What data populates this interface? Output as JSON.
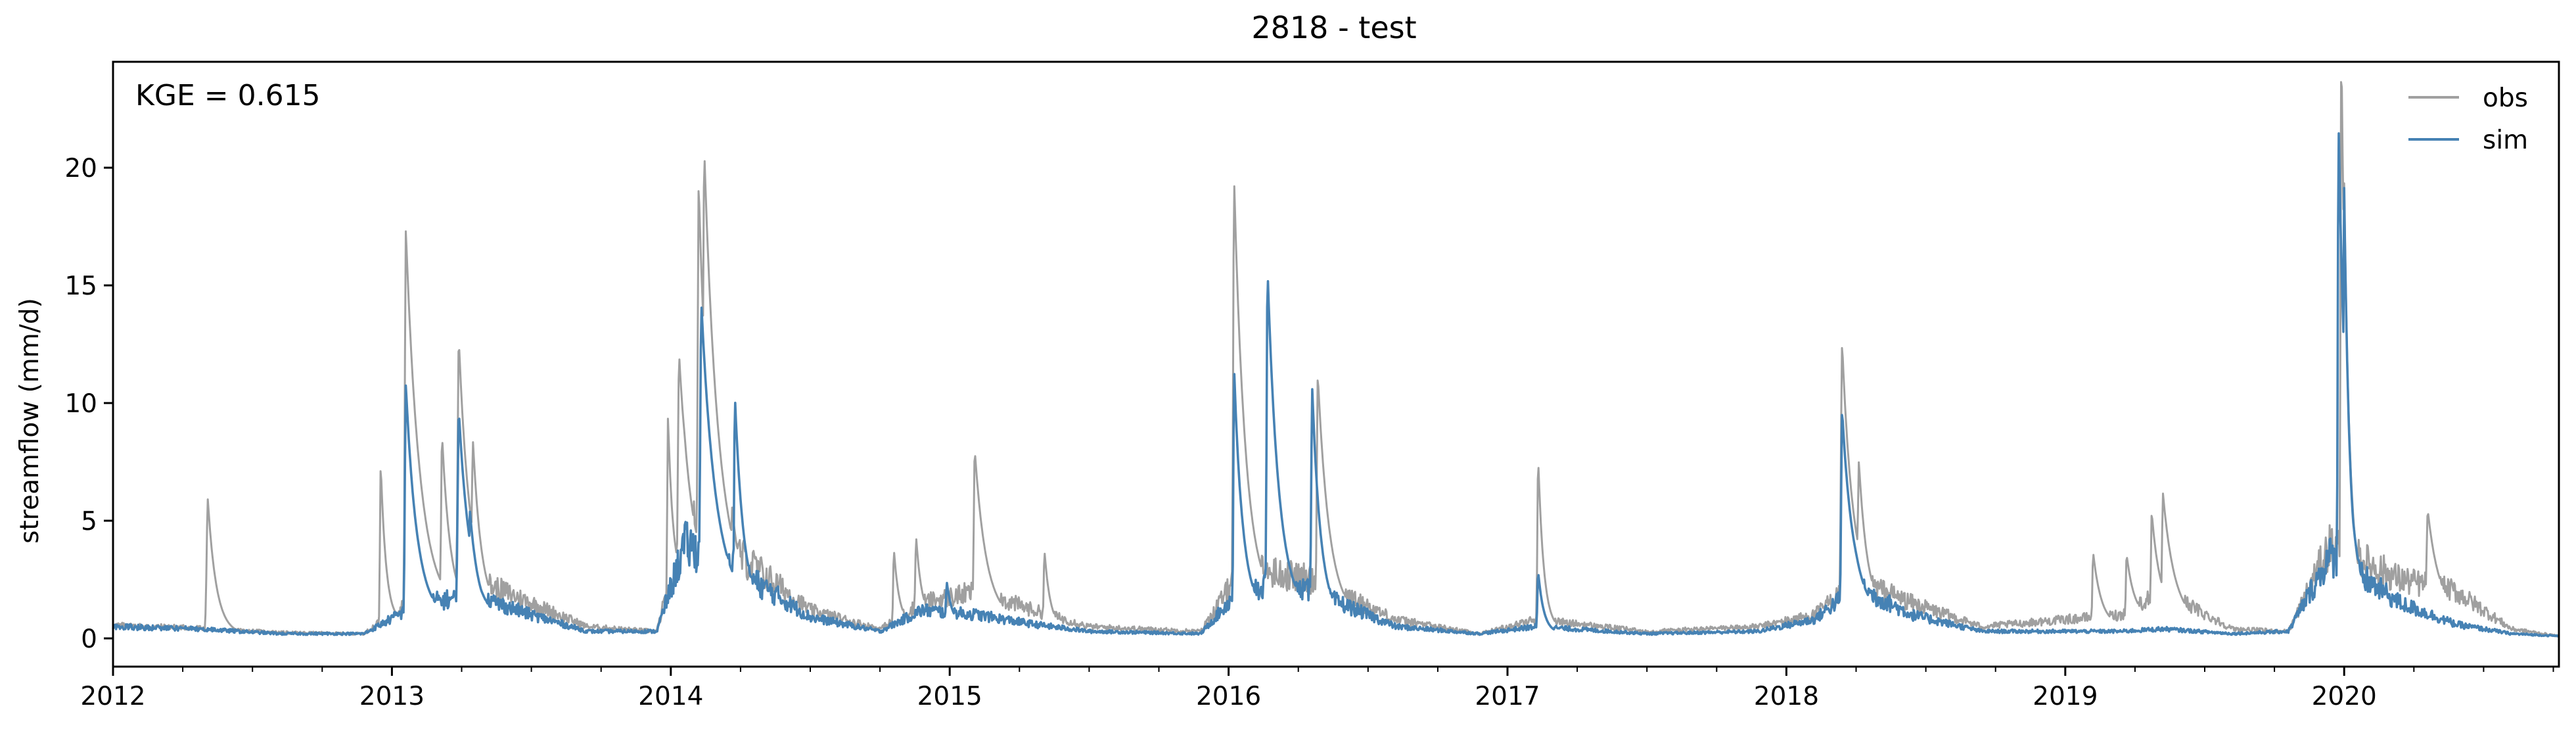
{
  "chart_data": {
    "type": "line",
    "title": "2818 - test",
    "xlabel": "",
    "ylabel": "streamflow (mm/d)",
    "annotation": "KGE = 0.615",
    "xlim": [
      2012.0,
      2020.77
    ],
    "ylim": [
      -1.2,
      24.5
    ],
    "x_ticks": [
      "2012",
      "2013",
      "2014",
      "2015",
      "2016",
      "2017",
      "2018",
      "2019",
      "2020"
    ],
    "y_ticks": [
      "0",
      "5",
      "10",
      "15",
      "20"
    ],
    "legend_position": "top-right",
    "grid": false,
    "series": [
      {
        "name": "obs",
        "color": "#a0a0a0",
        "baseline": [
          [
            2012.0,
            0.55
          ],
          [
            2012.3,
            0.45
          ],
          [
            2012.6,
            0.25
          ],
          [
            2012.9,
            0.2
          ],
          [
            2013.1,
            2.0
          ],
          [
            2013.3,
            2.5
          ],
          [
            2013.5,
            1.5
          ],
          [
            2013.7,
            0.5
          ],
          [
            2013.95,
            0.3
          ],
          [
            2014.05,
            5.0
          ],
          [
            2014.25,
            3.5
          ],
          [
            2014.5,
            1.2
          ],
          [
            2014.75,
            0.4
          ],
          [
            2014.9,
            1.5
          ],
          [
            2015.1,
            2.0
          ],
          [
            2015.3,
            1.2
          ],
          [
            2015.5,
            0.5
          ],
          [
            2015.9,
            0.3
          ],
          [
            2016.05,
            3.0
          ],
          [
            2016.3,
            2.5
          ],
          [
            2016.6,
            0.8
          ],
          [
            2016.9,
            0.2
          ],
          [
            2017.1,
            0.8
          ],
          [
            2017.5,
            0.3
          ],
          [
            2017.9,
            0.5
          ],
          [
            2018.1,
            1.0
          ],
          [
            2018.25,
            2.5
          ],
          [
            2018.45,
            1.5
          ],
          [
            2018.7,
            0.5
          ],
          [
            2019.0,
            0.8
          ],
          [
            2019.2,
            1.0
          ],
          [
            2019.35,
            2.0
          ],
          [
            2019.6,
            0.4
          ],
          [
            2019.8,
            0.3
          ],
          [
            2019.95,
            4.0
          ],
          [
            2020.2,
            2.5
          ],
          [
            2020.4,
            2.0
          ],
          [
            2020.6,
            0.4
          ],
          [
            2020.77,
            0.1
          ]
        ],
        "peaks": [
          [
            2012.34,
            5.7,
            0.006,
            0.03
          ],
          [
            2012.96,
            7.0,
            0.004,
            0.02
          ],
          [
            2013.05,
            16.6,
            0.005,
            0.05
          ],
          [
            2013.18,
            7.5,
            0.005,
            0.03
          ],
          [
            2013.24,
            11.5,
            0.006,
            0.04
          ],
          [
            2013.29,
            7.3,
            0.004,
            0.03
          ],
          [
            2013.99,
            8.3,
            0.004,
            0.02
          ],
          [
            2014.03,
            10.0,
            0.006,
            0.04
          ],
          [
            2014.1,
            17.0,
            0.005,
            0.04
          ],
          [
            2014.12,
            18.5,
            0.005,
            0.05
          ],
          [
            2014.22,
            3.7,
            0.005,
            0.03
          ],
          [
            2014.8,
            3.4,
            0.004,
            0.02
          ],
          [
            2014.88,
            3.6,
            0.005,
            0.02
          ],
          [
            2015.09,
            7.0,
            0.005,
            0.04
          ],
          [
            2015.34,
            3.2,
            0.004,
            0.02
          ],
          [
            2016.02,
            18.2,
            0.005,
            0.04
          ],
          [
            2016.32,
            10.0,
            0.005,
            0.04
          ],
          [
            2017.11,
            7.3,
            0.004,
            0.02
          ],
          [
            2018.2,
            11.5,
            0.006,
            0.04
          ],
          [
            2018.26,
            6.3,
            0.005,
            0.03
          ],
          [
            2019.1,
            3.2,
            0.004,
            0.03
          ],
          [
            2019.22,
            3.0,
            0.004,
            0.03
          ],
          [
            2019.31,
            4.5,
            0.004,
            0.03
          ],
          [
            2019.35,
            5.2,
            0.004,
            0.04
          ],
          [
            2019.99,
            23.4,
            0.004,
            0.02
          ],
          [
            2020.0,
            17.5,
            0.004,
            0.02
          ],
          [
            2020.3,
            4.3,
            0.006,
            0.04
          ]
        ]
      },
      {
        "name": "sim",
        "color": "#4682b4",
        "baseline": [
          [
            2012.0,
            0.5
          ],
          [
            2012.3,
            0.4
          ],
          [
            2012.6,
            0.2
          ],
          [
            2012.9,
            0.2
          ],
          [
            2013.1,
            1.5
          ],
          [
            2013.3,
            1.8
          ],
          [
            2013.5,
            1.0
          ],
          [
            2013.7,
            0.3
          ],
          [
            2013.95,
            0.3
          ],
          [
            2014.05,
            4.0
          ],
          [
            2014.25,
            2.8
          ],
          [
            2014.5,
            0.9
          ],
          [
            2014.75,
            0.3
          ],
          [
            2014.9,
            1.2
          ],
          [
            2015.1,
            1.0
          ],
          [
            2015.3,
            0.6
          ],
          [
            2015.5,
            0.3
          ],
          [
            2015.9,
            0.2
          ],
          [
            2016.05,
            2.2
          ],
          [
            2016.3,
            2.0
          ],
          [
            2016.6,
            0.5
          ],
          [
            2016.9,
            0.2
          ],
          [
            2017.1,
            0.5
          ],
          [
            2017.5,
            0.2
          ],
          [
            2017.9,
            0.3
          ],
          [
            2018.1,
            0.8
          ],
          [
            2018.25,
            2.2
          ],
          [
            2018.45,
            1.0
          ],
          [
            2018.7,
            0.3
          ],
          [
            2019.0,
            0.3
          ],
          [
            2019.2,
            0.3
          ],
          [
            2019.35,
            0.4
          ],
          [
            2019.6,
            0.2
          ],
          [
            2019.8,
            0.3
          ],
          [
            2019.95,
            3.5
          ],
          [
            2020.2,
            1.5
          ],
          [
            2020.4,
            0.6
          ],
          [
            2020.6,
            0.2
          ],
          [
            2020.77,
            0.1
          ]
        ],
        "peaks": [
          [
            2013.05,
            10.2,
            0.005,
            0.04
          ],
          [
            2013.24,
            8.8,
            0.006,
            0.04
          ],
          [
            2013.28,
            4.5,
            0.004,
            0.03
          ],
          [
            2014.11,
            12.3,
            0.006,
            0.05
          ],
          [
            2014.23,
            8.8,
            0.004,
            0.03
          ],
          [
            2014.99,
            1.8,
            0.005,
            0.02
          ],
          [
            2016.02,
            10.5,
            0.004,
            0.03
          ],
          [
            2016.14,
            14.5,
            0.005,
            0.04
          ],
          [
            2016.3,
            9.6,
            0.005,
            0.03
          ],
          [
            2017.11,
            2.6,
            0.004,
            0.02
          ],
          [
            2018.2,
            8.8,
            0.005,
            0.04
          ],
          [
            2019.98,
            20.3,
            0.004,
            0.03
          ],
          [
            2020.0,
            17.6,
            0.004,
            0.02
          ]
        ]
      }
    ]
  }
}
